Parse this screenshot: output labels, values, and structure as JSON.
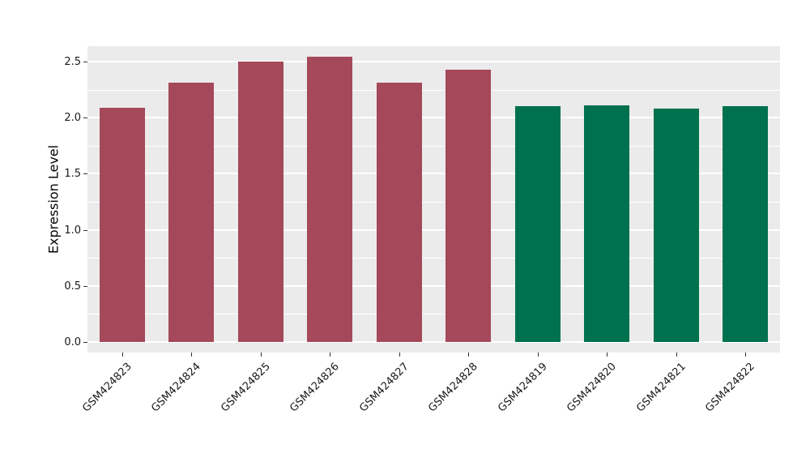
{
  "figure": {
    "background": "#FFFFFF"
  },
  "chart_data": {
    "type": "bar",
    "title": "",
    "xlabel": "",
    "ylabel": "Expression Level",
    "categories": [
      "GSM424823",
      "GSM424824",
      "GSM424825",
      "GSM424826",
      "GSM424827",
      "GSM424828",
      "GSM424819",
      "GSM424820",
      "GSM424821",
      "GSM424822"
    ],
    "values": [
      2.09,
      2.31,
      2.5,
      2.54,
      2.31,
      2.43,
      2.1,
      2.11,
      2.08,
      2.1
    ],
    "bar_colors": [
      "#A4485A",
      "#A4485A",
      "#A4485A",
      "#A4485A",
      "#A4485A",
      "#A4485A",
      "#00714E",
      "#00714E",
      "#00714E",
      "#00714E"
    ],
    "group_colors": {
      "first_group": "#A4485A",
      "second_group": "#00714E"
    },
    "yticks": [
      0,
      0.5,
      1.0,
      1.5,
      2.0,
      2.5
    ],
    "ytick_labels": [
      "0.0",
      "0.5",
      "1.0",
      "1.5",
      "2.0",
      "2.5"
    ],
    "minor_ticks": [
      0.25,
      0.75,
      1.25,
      1.75,
      2.25
    ],
    "ylim": [
      0,
      2.64
    ],
    "grid": true,
    "legend_position": "none",
    "panel_bg": "#EBEBEB",
    "grid_color": "#FFFFFF",
    "axis_text_color": "#1A1A1A"
  }
}
